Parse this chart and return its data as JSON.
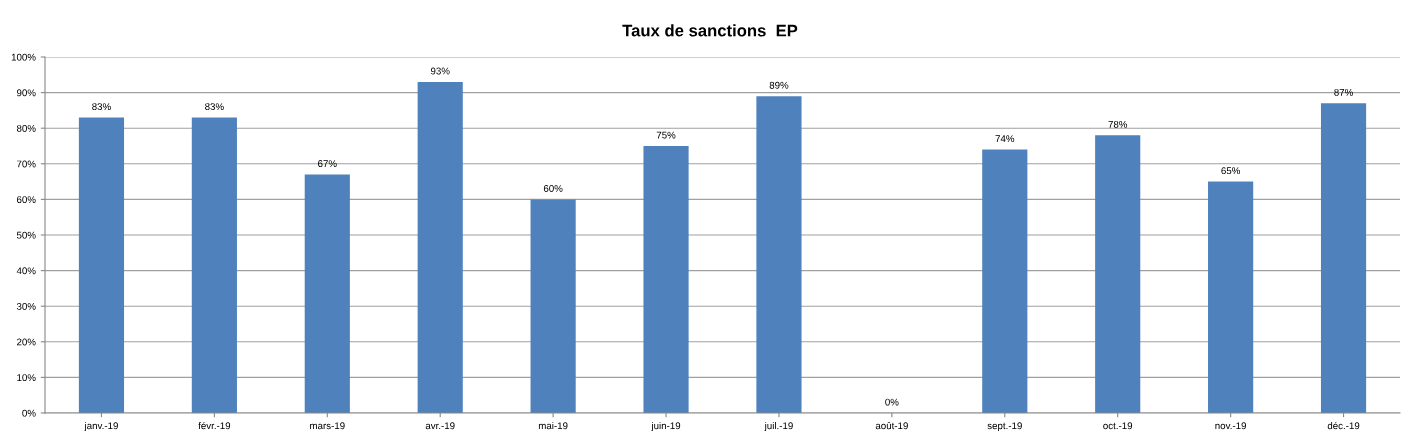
{
  "chart_data": {
    "type": "bar",
    "title": "Taux de sanctions  EP",
    "categories": [
      "janv.-19",
      "févr.-19",
      "mars-19",
      "avr.-19",
      "mai-19",
      "juin-19",
      "juil.-19",
      "août-19",
      "sept.-19",
      "oct.-19",
      "nov.-19",
      "déc.-19"
    ],
    "values": [
      83,
      83,
      67,
      93,
      60,
      75,
      89,
      0,
      74,
      78,
      65,
      87
    ],
    "value_labels": [
      "83%",
      "83%",
      "67%",
      "93%",
      "60%",
      "75%",
      "89%",
      "0%",
      "74%",
      "78%",
      "65%",
      "87%"
    ],
    "color": "#4f81bd",
    "ylim": [
      0,
      100
    ],
    "yticks": [
      {
        "value": 0,
        "label": "0%"
      },
      {
        "value": 10,
        "label": "10%"
      },
      {
        "value": 20,
        "label": "20%"
      },
      {
        "value": 30,
        "label": "30%"
      },
      {
        "value": 40,
        "label": "40%"
      },
      {
        "value": 50,
        "label": "50%"
      },
      {
        "value": 60,
        "label": "60%"
      },
      {
        "value": 70,
        "label": "70%"
      },
      {
        "value": 80,
        "label": "80%"
      },
      {
        "value": 90,
        "label": "90%"
      },
      {
        "value": 100,
        "label": "100%"
      }
    ],
    "grid": "y"
  }
}
